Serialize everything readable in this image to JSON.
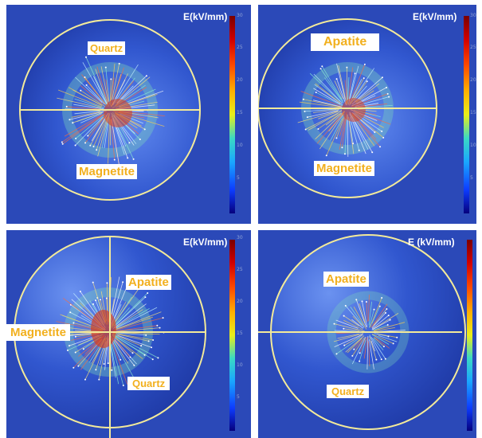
{
  "scale_title_full": "E(kV/mm)",
  "scale_title_spaced": "E (kV/mm)",
  "ticks": [
    "30",
    "25",
    "20",
    "15",
    "10",
    "5"
  ],
  "colors": {
    "background_blue": "#2b49b8",
    "sphere_blue": "#3a64d8",
    "ring_yellow": "#f3ea9a",
    "label_orange": "#f2b01e"
  },
  "panels": [
    {
      "labels": [
        "Quartz",
        "Magnetite"
      ]
    },
    {
      "labels": [
        "Apatite",
        "Magnetite"
      ]
    },
    {
      "labels": [
        "Apatite",
        "Magnetite",
        "Quartz"
      ]
    },
    {
      "labels": [
        "Apatite",
        "Quartz"
      ]
    }
  ]
}
